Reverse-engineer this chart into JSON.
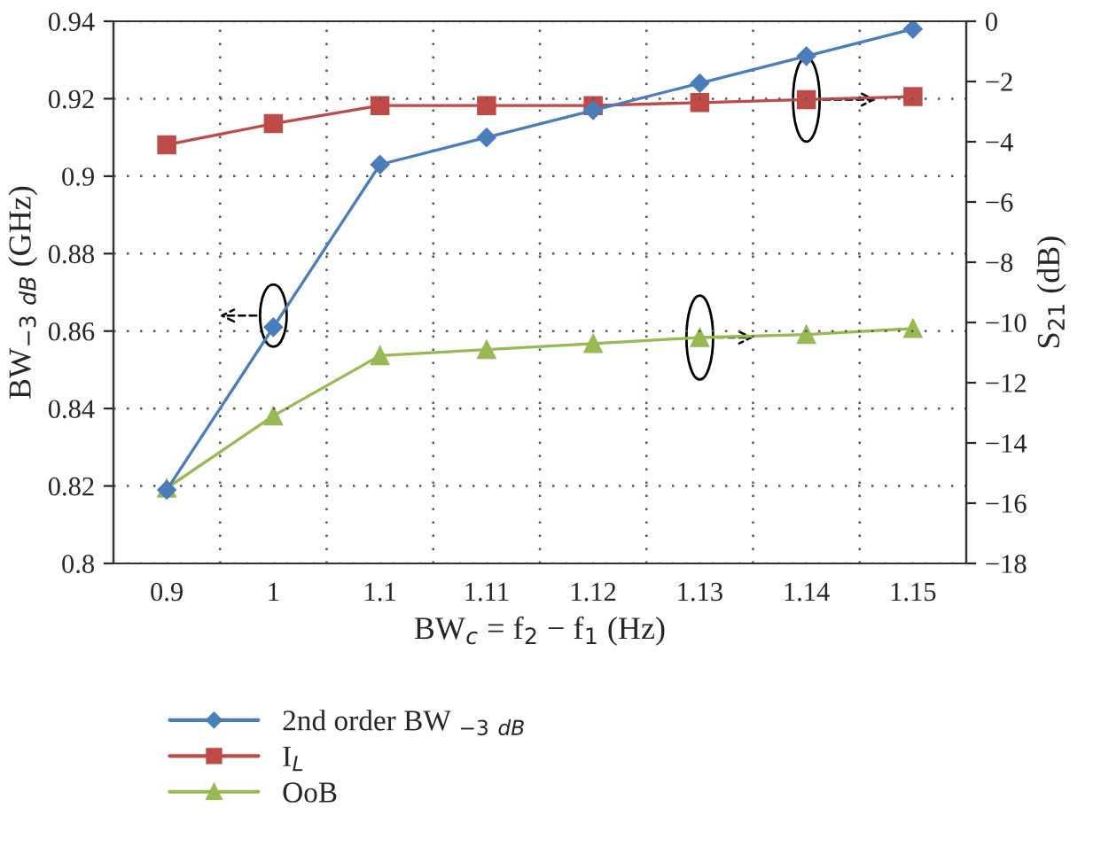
{
  "chart_data": {
    "type": "line",
    "xlabel": "BW$_{c}$ = f$_{2}$ − f$_{1}$ (Hz)",
    "ylabel": "BW$_{−3}$ $_{dB}$ (GHz)",
    "y2label": "S$_{21}$ (dB)",
    "categories": [
      "0.9",
      "1",
      "1.1",
      "1.11",
      "1.12",
      "1.13",
      "1.14",
      "1.15"
    ],
    "series": [
      {
        "name": "2nd order BW $_{−3}$ $_{dB}$",
        "color": "#4a7ebb",
        "marker": "diamond",
        "values": [
          0.819,
          0.861,
          0.903,
          0.91,
          0.917,
          0.924,
          0.931,
          0.938
        ]
      },
      {
        "name": "I$_{L}$",
        "color": "#be4b48",
        "marker": "square",
        "axis": "y2",
        "values": [
          -4.1,
          -3.4,
          -2.8,
          -2.8,
          -2.8,
          -2.7,
          -2.6,
          -2.5
        ]
      },
      {
        "name": "OoB",
        "color": "#98b954",
        "marker": "triangle",
        "axis": "y2",
        "values": [
          -15.5,
          -13.1,
          -11.1,
          -10.9,
          -10.7,
          -10.5,
          -10.4,
          -10.2
        ]
      }
    ],
    "ylim": [
      0.8,
      0.94
    ],
    "yticks": [
      0.8,
      0.82,
      0.84,
      0.86,
      0.88,
      0.9,
      0.92,
      0.94
    ],
    "y2lim": [
      -18,
      0
    ],
    "y2ticks": [
      {
        "value": -18,
        "label": "−18"
      },
      {
        "value": -16,
        "label": "−16"
      },
      {
        "value": -14,
        "label": "−14"
      },
      {
        "value": -12,
        "label": "−12"
      },
      {
        "value": -10,
        "label": "−10"
      },
      {
        "value": -8,
        "label": "−8"
      },
      {
        "value": -6,
        "label": "−6"
      },
      {
        "value": -4,
        "label": "−4"
      },
      {
        "value": -2,
        "label": "−2"
      },
      0
    ],
    "grid": true,
    "legend": "bottom",
    "line_style": "solid"
  }
}
